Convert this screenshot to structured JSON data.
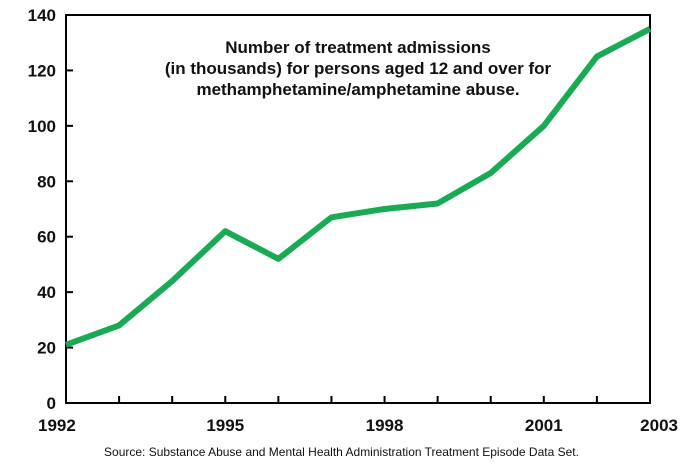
{
  "chart_data": {
    "type": "line",
    "title_lines": [
      "Number of treatment admissions",
      "(in thousands) for persons aged 12 and over for",
      "methamphetamine/amphetamine abuse."
    ],
    "x": [
      1992,
      1993,
      1994,
      1995,
      1996,
      1997,
      1998,
      1999,
      2000,
      2001,
      2002,
      2003
    ],
    "series": [
      {
        "values": [
          21,
          28,
          44,
          62,
          52,
          67,
          70,
          72,
          83,
          100,
          125,
          135
        ],
        "color": "#1aaa55"
      }
    ],
    "xlim": [
      1992,
      2003
    ],
    "ylim": [
      0,
      140
    ],
    "x_tick_labels": [
      "1992",
      "1995",
      "1998",
      "2001",
      "2003"
    ],
    "x_tick_label_values": [
      1992,
      1995,
      1998,
      2001,
      2003
    ],
    "y_ticks": [
      0,
      20,
      40,
      60,
      80,
      100,
      120,
      140
    ],
    "x_minor_ticks": [
      1993,
      1994,
      1996,
      1997,
      1999,
      2000,
      2002
    ],
    "grid": false,
    "source": "Source: Substance Abuse and Mental Health Administration Treatment Episode Data Set."
  }
}
